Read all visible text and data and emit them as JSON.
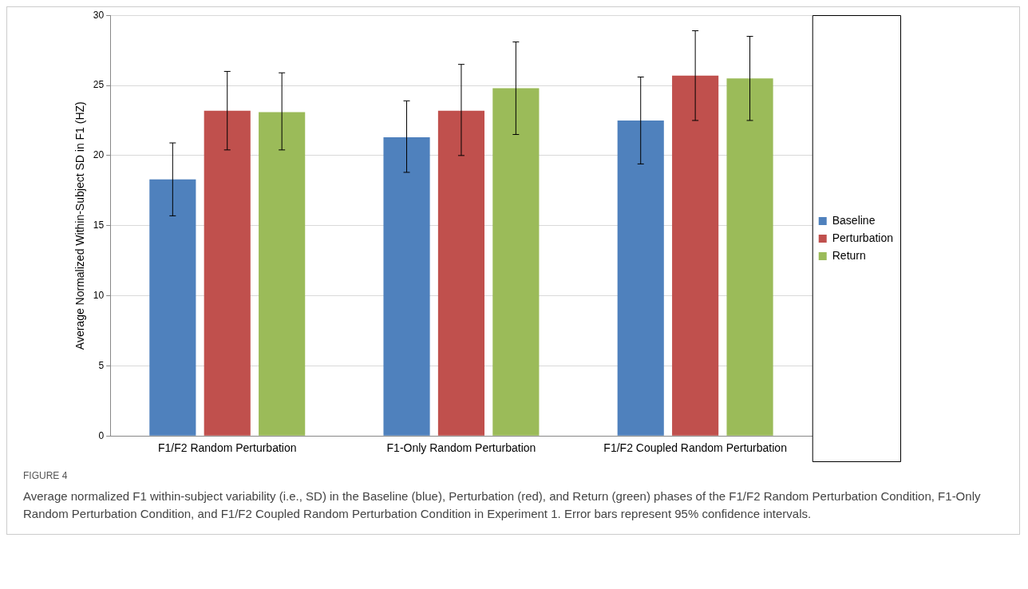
{
  "chart_data": {
    "type": "bar",
    "ylabel": "Average Normalized Within-Subject SD in F1 (HZ)",
    "categories": [
      "F1/F2 Random Perturbation",
      "F1-Only Random Perturbation",
      "F1/F2 Coupled Random Perturbation"
    ],
    "series": [
      {
        "name": "Baseline",
        "color": "#4f81bd",
        "values": [
          18.3,
          21.3,
          22.5
        ],
        "errors": [
          [
            15.7,
            20.9
          ],
          [
            18.8,
            23.9
          ],
          [
            19.4,
            25.6
          ]
        ]
      },
      {
        "name": "Perturbation",
        "color": "#c0504d",
        "values": [
          23.2,
          23.2,
          25.7
        ],
        "errors": [
          [
            20.4,
            26.0
          ],
          [
            20.0,
            26.5
          ],
          [
            22.5,
            28.9
          ]
        ]
      },
      {
        "name": "Return",
        "color": "#9bbb59",
        "values": [
          23.1,
          24.8,
          25.5
        ],
        "errors": [
          [
            20.4,
            25.9
          ],
          [
            21.5,
            28.1
          ],
          [
            22.5,
            28.5
          ]
        ]
      }
    ],
    "ylim": [
      0,
      30
    ],
    "yticks": [
      0,
      5,
      10,
      15,
      20,
      25,
      30
    ],
    "grid": "y",
    "legend": "right",
    "annotations": [
      "FIGURE 4",
      "Average normalized F1 within-subject variability (i.e., SD) in the Baseline (blue), Perturbation (red), and Return (green) phases of the F1/F2 Random Perturbation Condition, F1-Only Random Perturbation Condition, and F1/F2 Coupled Random Perturbation Condition in Experiment 1. Error bars represent 95% confidence intervals."
    ]
  }
}
